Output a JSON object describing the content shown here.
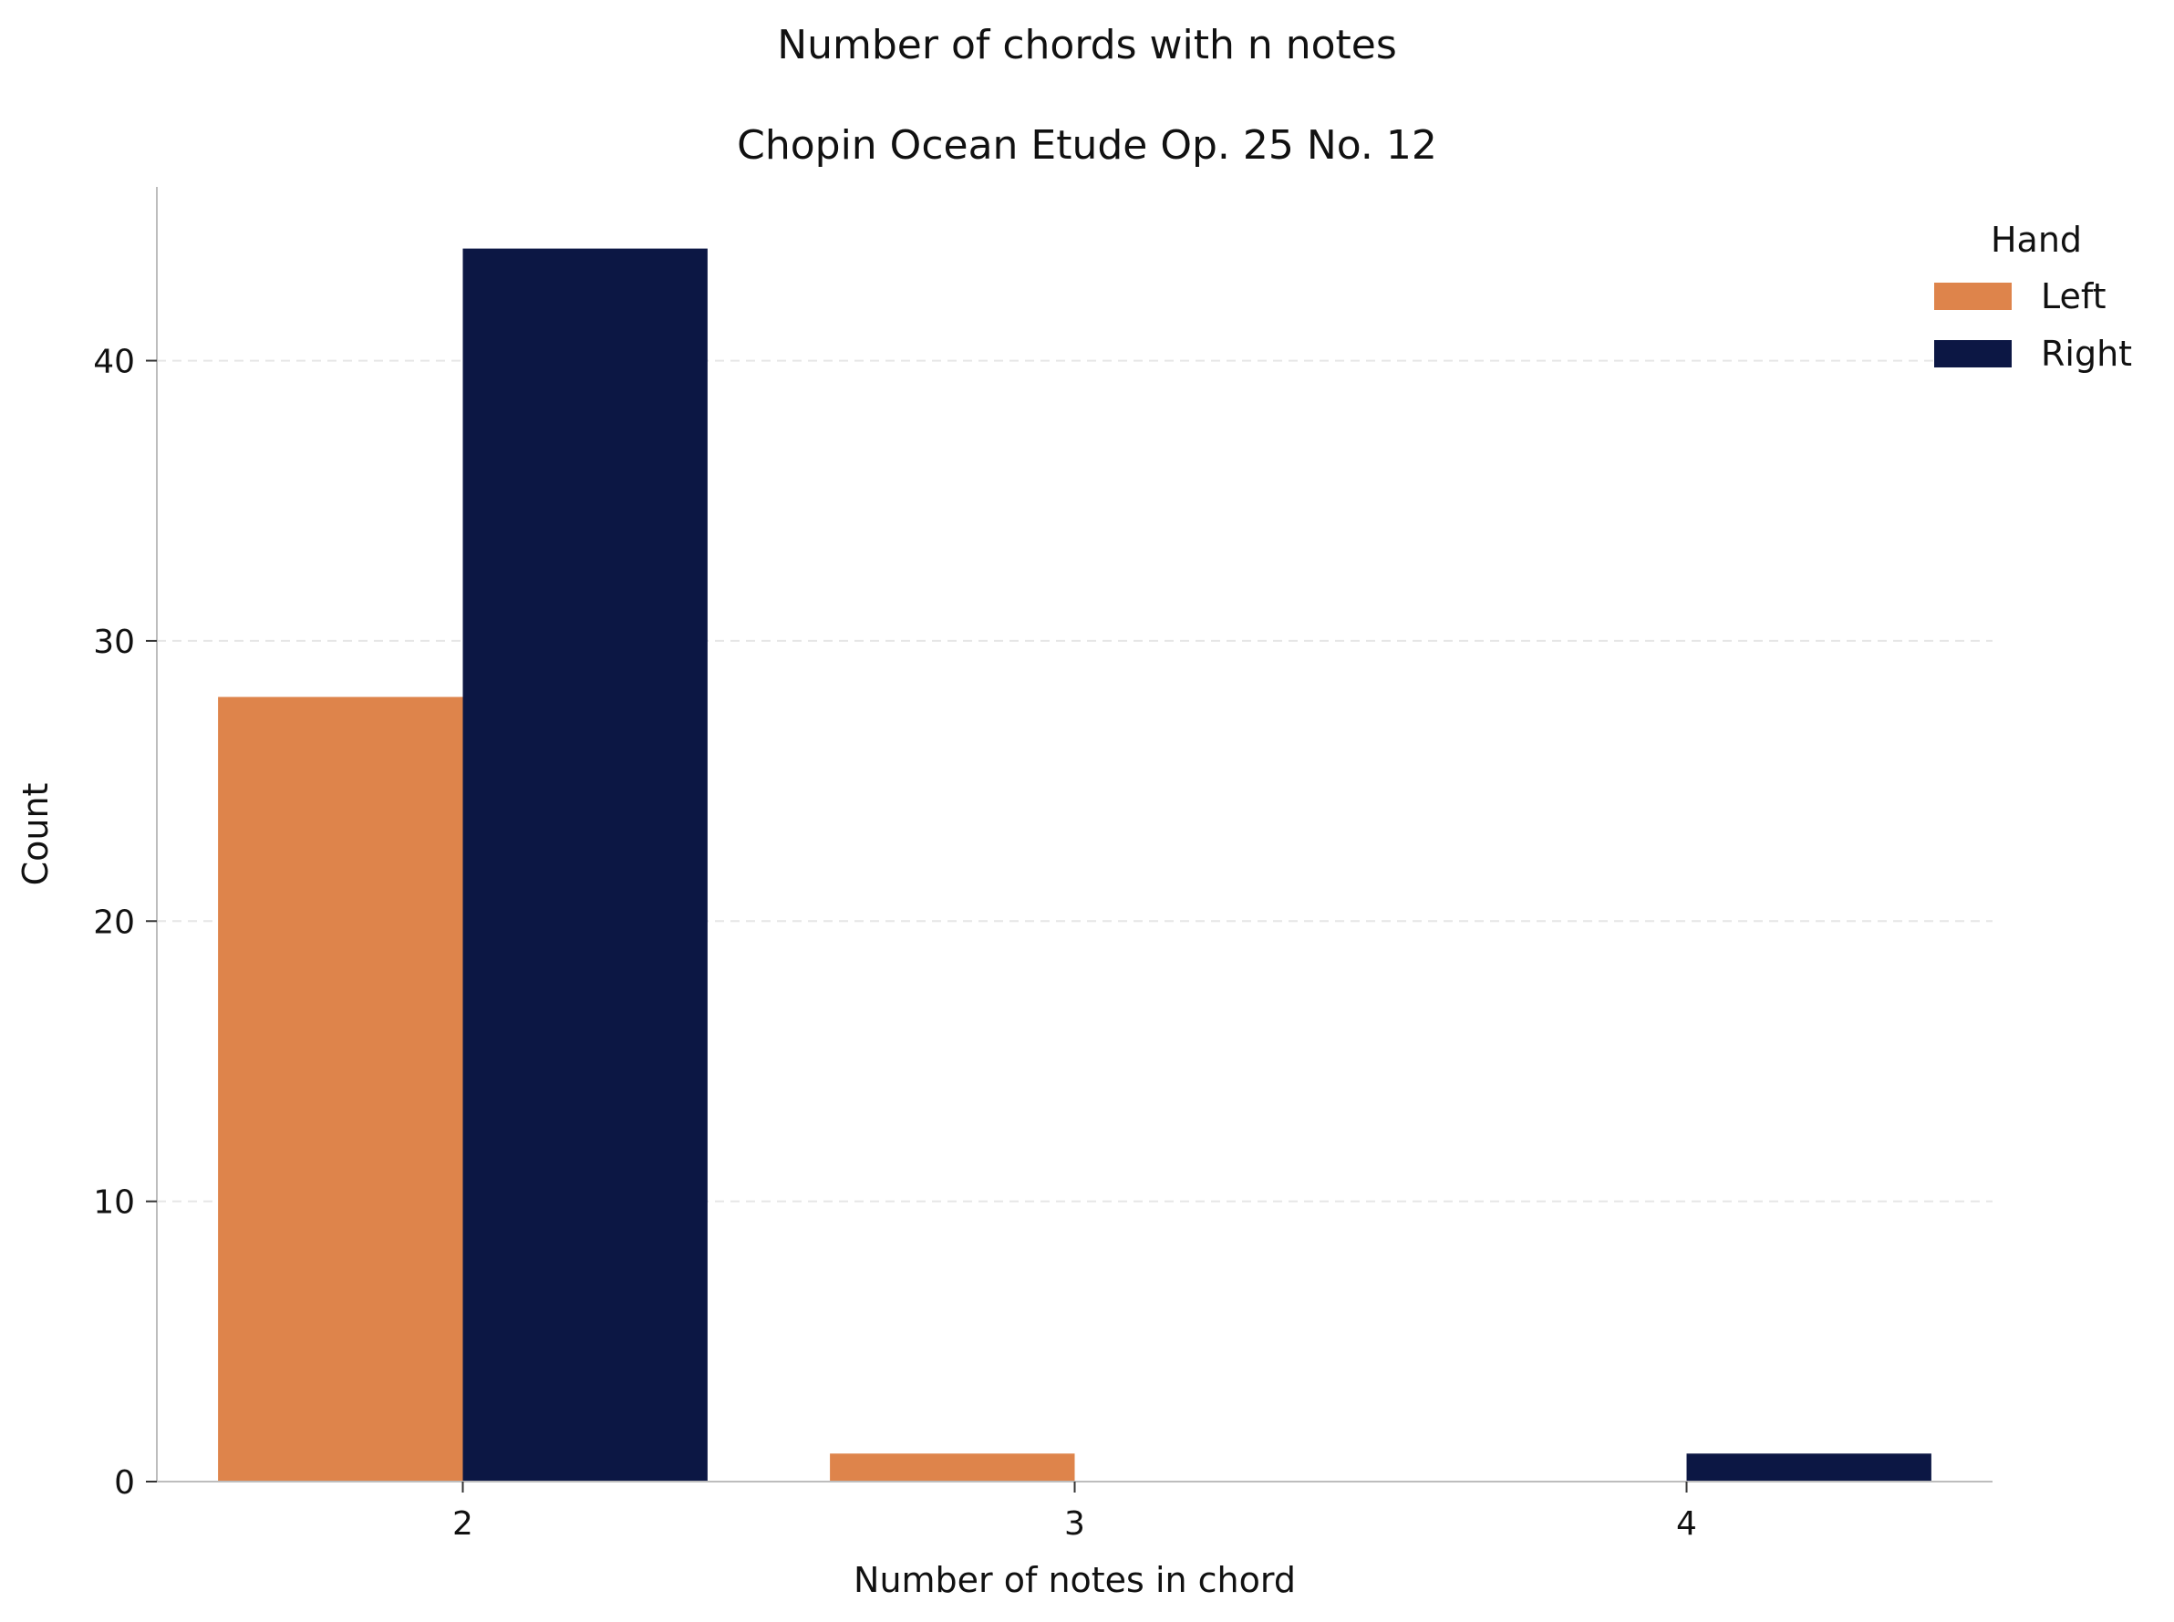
{
  "chart_data": {
    "type": "bar",
    "title": "Number of chords with n notes",
    "subtitle": "Chopin Ocean Etude Op. 25 No. 12",
    "xlabel": "Number of notes in chord",
    "ylabel": "Count",
    "categories": [
      "2",
      "3",
      "4"
    ],
    "series": [
      {
        "name": "Left",
        "color": "#DE844B",
        "values": [
          28,
          1,
          0
        ]
      },
      {
        "name": "Right",
        "color": "#0C1744",
        "values": [
          44,
          0,
          1
        ]
      }
    ],
    "ylim": [
      0,
      46.2
    ],
    "yticks": [
      0,
      10,
      20,
      30,
      40
    ],
    "grid": "horizontal dashed",
    "legend": {
      "title": "Hand",
      "position": "top-right"
    }
  }
}
